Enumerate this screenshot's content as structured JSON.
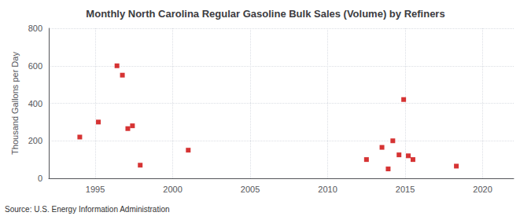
{
  "chart_data": {
    "type": "scatter",
    "title": "Monthly North Carolina Regular Gasoline Bulk Sales (Volume) by Refiners",
    "ylabel": "Thousand Gallons per Day",
    "source": "Source: U.S. Energy Information Administration",
    "x": [
      1994.0,
      1995.2,
      1996.4,
      1996.75,
      1997.1,
      1997.4,
      1997.9,
      2001.0,
      2012.5,
      2013.5,
      2013.9,
      2014.2,
      2014.6,
      2014.9,
      2015.2,
      2015.5,
      2018.3
    ],
    "values": [
      220,
      300,
      600,
      550,
      265,
      280,
      70,
      150,
      100,
      165,
      50,
      200,
      125,
      420,
      120,
      100,
      65
    ],
    "color": "#cc0000",
    "marker": "square",
    "xlim": [
      1992,
      2022
    ],
    "ylim": [
      0,
      800
    ],
    "xticks": [
      1995,
      2000,
      2005,
      2010,
      2015,
      2020
    ],
    "yticks": [
      0,
      200,
      400,
      600,
      800
    ],
    "grid": true
  }
}
